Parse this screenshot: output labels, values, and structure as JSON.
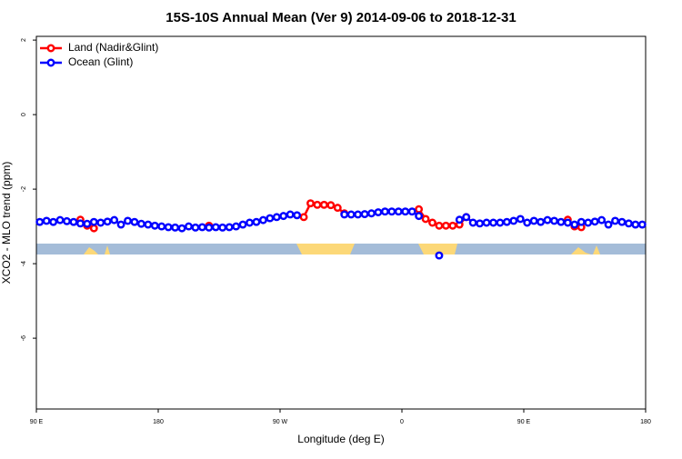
{
  "chart_data": {
    "type": "line",
    "title": "15S-10S Annual Mean (Ver 9)   2014-09-06 to 2018-12-31",
    "xlabel": "Longitude (deg E)",
    "ylabel": "XCO2 - MLO trend (ppm)",
    "x": [
      92.5,
      97.5,
      102.5,
      107.5,
      112.5,
      117.5,
      122.5,
      127.5,
      132.5,
      137.5,
      142.5,
      147.5,
      152.5,
      157.5,
      162.5,
      167.5,
      172.5,
      177.5,
      182.5,
      187.5,
      192.5,
      197.5,
      202.5,
      207.5,
      212.5,
      217.5,
      222.5,
      227.5,
      232.5,
      237.5,
      242.5,
      247.5,
      252.5,
      257.5,
      262.5,
      267.5,
      272.5,
      277.5,
      282.5,
      287.5,
      292.5,
      297.5,
      302.5,
      307.5,
      312.5,
      317.5,
      322.5,
      327.5,
      332.5,
      337.5,
      342.5,
      347.5,
      352.5,
      357.5,
      362.5,
      367.5,
      372.5,
      377.5,
      382.5,
      387.5,
      392.5,
      397.5,
      402.5,
      407.5,
      412.5,
      417.5,
      422.5,
      427.5,
      432.5,
      437.5,
      442.5,
      447.5,
      452.5,
      457.5,
      462.5,
      467.5,
      472.5,
      477.5,
      482.5,
      487.5,
      492.5,
      497.5,
      502.5,
      507.5,
      512.5,
      517.5,
      522.5,
      527.5,
      532.5,
      537.5
    ],
    "series": [
      {
        "name": "Land (Nadir&Glint)",
        "color": "#ff0000",
        "values": [
          null,
          null,
          null,
          null,
          null,
          null,
          -2.82,
          -2.98,
          -3.05,
          null,
          null,
          null,
          null,
          null,
          null,
          null,
          null,
          null,
          null,
          null,
          null,
          null,
          null,
          null,
          null,
          -2.98,
          null,
          null,
          null,
          null,
          null,
          null,
          null,
          null,
          null,
          null,
          null,
          null,
          null,
          -2.75,
          -2.38,
          -2.42,
          -2.42,
          -2.43,
          -2.5,
          -2.65,
          null,
          null,
          null,
          null,
          null,
          null,
          null,
          null,
          null,
          null,
          -2.54,
          -2.8,
          -2.9,
          -2.98,
          -2.98,
          -2.98,
          -2.95,
          -2.75,
          null,
          null,
          null,
          null,
          null,
          null,
          null,
          null,
          null,
          null,
          null,
          null,
          null,
          null,
          -2.82,
          -3.0,
          -3.02,
          null,
          null,
          null,
          null,
          null,
          null,
          null,
          null,
          null
        ]
      },
      {
        "name": "Ocean (Glint)",
        "color": "#0000ff",
        "values": [
          -2.88,
          -2.85,
          -2.88,
          -2.83,
          -2.86,
          -2.88,
          -2.92,
          -2.93,
          -2.88,
          -2.9,
          -2.87,
          -2.83,
          -2.95,
          -2.85,
          -2.88,
          -2.93,
          -2.95,
          -2.98,
          -3.0,
          -3.02,
          -3.03,
          -3.05,
          -3.0,
          -3.03,
          -3.02,
          -3.03,
          -3.02,
          -3.03,
          -3.02,
          -3.0,
          -2.95,
          -2.9,
          -2.88,
          -2.83,
          -2.78,
          -2.75,
          -2.72,
          -2.68,
          -2.7,
          null,
          null,
          null,
          null,
          null,
          null,
          -2.68,
          -2.68,
          -2.68,
          -2.67,
          -2.65,
          -2.62,
          -2.6,
          -2.6,
          -2.6,
          -2.6,
          -2.6,
          -2.72,
          null,
          null,
          -3.78,
          null,
          null,
          -2.82,
          -2.75,
          -2.9,
          -2.92,
          -2.9,
          -2.9,
          -2.9,
          -2.88,
          -2.85,
          -2.8,
          -2.9,
          -2.85,
          -2.88,
          -2.83,
          -2.85,
          -2.88,
          -2.9,
          -2.95,
          -2.88,
          -2.9,
          -2.87,
          -2.83,
          -2.95,
          -2.85,
          -2.88,
          -2.92,
          -2.95,
          -2.95
        ]
      }
    ],
    "xlim": [
      90,
      540
    ],
    "xticks": [
      {
        "value": 90,
        "label": "90 E"
      },
      180,
      {
        "value": 270,
        "label": "90 W"
      },
      {
        "value": 360,
        "label": "0"
      },
      {
        "value": 450,
        "label": "90 E"
      },
      {
        "value": 540,
        "label": "180"
      }
    ],
    "ylim": [
      -7.9,
      2.1
    ],
    "yticks": [
      -6,
      -4,
      -2,
      0,
      2
    ],
    "legend": "top-left"
  }
}
